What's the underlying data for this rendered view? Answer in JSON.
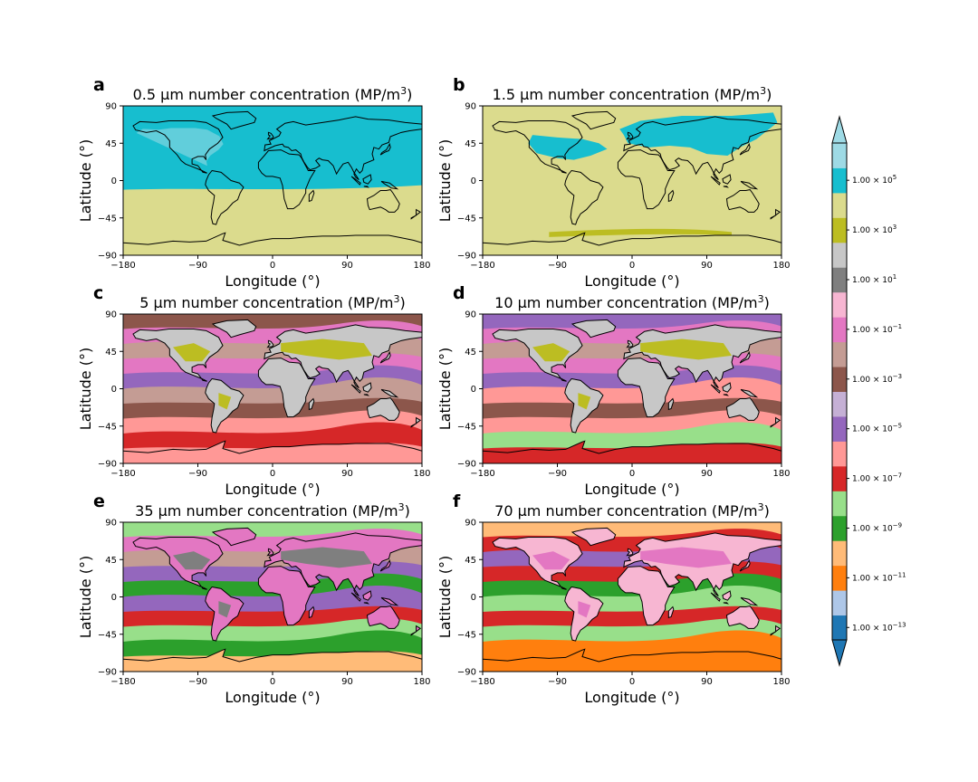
{
  "chart_data": {
    "type": "heatmap",
    "figure": "multi-panel global maps",
    "colorbar": {
      "colors": [
        "#1f77b4",
        "#aec7e8",
        "#ff7f0e",
        "#ffbb78",
        "#2ca02c",
        "#98df8a",
        "#d62728",
        "#ff9896",
        "#9467bd",
        "#c5b0d5",
        "#8c564b",
        "#c49c94",
        "#e377c2",
        "#f7b6d2",
        "#7f7f7f",
        "#c7c7c7",
        "#bcbd22",
        "#dbdb8d",
        "#17becf",
        "#9edae5"
      ],
      "extend": "both",
      "tick_labels": [
        {
          "mantissa": "1.00 × 10",
          "exp": "−13",
          "level_index": 0
        },
        {
          "mantissa": "1.00 × 10",
          "exp": "−11",
          "level_index": 2
        },
        {
          "mantissa": "1.00 × 10",
          "exp": "−9",
          "level_index": 4
        },
        {
          "mantissa": "1.00 × 10",
          "exp": "−7",
          "level_index": 6
        },
        {
          "mantissa": "1.00 × 10",
          "exp": "−5",
          "level_index": 8
        },
        {
          "mantissa": "1.00 × 10",
          "exp": "−3",
          "level_index": 10
        },
        {
          "mantissa": "1.00 × 10",
          "exp": "−1",
          "level_index": 12
        },
        {
          "mantissa": "1.00 × 10",
          "exp": "1",
          "level_index": 14
        },
        {
          "mantissa": "1.00 × 10",
          "exp": "3",
          "level_index": 16
        },
        {
          "mantissa": "1.00 × 10",
          "exp": "5",
          "level_index": 18
        }
      ]
    },
    "panels": [
      {
        "letter": "a",
        "title_main": "0.5 μm number concentration (MP/m",
        "title_exp": "3",
        "title_tail": ")",
        "xlabel": "Longitude (°)",
        "ylabel": "Latitude (°)",
        "xlim": [
          -180,
          180
        ],
        "ylim": [
          -90,
          90
        ],
        "xticks": [
          "−180",
          "−90",
          "0",
          "90",
          "180"
        ],
        "yticks": [
          "−90",
          "−45",
          "0",
          "45",
          "90"
        ],
        "ocean_color": "#17becf",
        "land_color": "#17becf",
        "south_color": "#dbdb8d",
        "south_boundary_lat": -10,
        "dominant_values": [
          "1.00 × 10^5",
          "1.00 × 10^3"
        ]
      },
      {
        "letter": "b",
        "title_main": "1.5 μm number concentration (MP/m",
        "title_exp": "3",
        "title_tail": ")",
        "xlabel": "Longitude (°)",
        "ylabel": "Latitude (°)",
        "xlim": [
          -180,
          180
        ],
        "ylim": [
          -90,
          90
        ],
        "xticks": [
          "−180",
          "−90",
          "0",
          "90",
          "180"
        ],
        "yticks": [
          "−90",
          "−45",
          "0",
          "45",
          "90"
        ],
        "ocean_color": "#dbdb8d",
        "land_color": "#dbdb8d",
        "north_color": "#17becf",
        "polar_band_color": "#bcbd22",
        "dominant_values": [
          "1.00 × 10^3",
          "1.00 × 10^5"
        ]
      },
      {
        "letter": "c",
        "title_main": "5 μm number concentration (MP/m",
        "title_exp": "3",
        "title_tail": ")",
        "xlabel": "Longitude (°)",
        "ylabel": "Latitude (°)",
        "xlim": [
          -180,
          180
        ],
        "ylim": [
          -90,
          90
        ],
        "xticks": [
          "−180",
          "−90",
          "0",
          "90",
          "180"
        ],
        "yticks": [
          "−90",
          "−45",
          "0",
          "45",
          "90"
        ],
        "ocean_color": "#c49c94",
        "land_color": "#c7c7c7",
        "land_core_color": "#bcbd22",
        "bands": [
          "#8c564b",
          "#e377c2",
          "#c49c94",
          "#e377c2",
          "#9467bd",
          "#c49c94",
          "#8c564b",
          "#ff9896",
          "#d62728",
          "#ff9896"
        ]
      },
      {
        "letter": "d",
        "title_main": "10 μm number concentration (MP/m",
        "title_exp": "3",
        "title_tail": ")",
        "xlabel": "Longitude (°)",
        "ylabel": "Latitude (°)",
        "xlim": [
          -180,
          180
        ],
        "ylim": [
          -90,
          90
        ],
        "xticks": [
          "−180",
          "−90",
          "0",
          "90",
          "180"
        ],
        "yticks": [
          "−90",
          "−45",
          "0",
          "45",
          "90"
        ],
        "ocean_color": "#c49c94",
        "land_color": "#c7c7c7",
        "land_core_color": "#bcbd22",
        "bands": [
          "#9467bd",
          "#e377c2",
          "#c49c94",
          "#e377c2",
          "#9467bd",
          "#ff9896",
          "#8c564b",
          "#ff9896",
          "#98df8a",
          "#d62728"
        ]
      },
      {
        "letter": "e",
        "title_main": "35 μm number concentration (MP/m",
        "title_exp": "3",
        "title_tail": ")",
        "xlabel": "Longitude (°)",
        "ylabel": "Latitude (°)",
        "xlim": [
          -180,
          180
        ],
        "ylim": [
          -90,
          90
        ],
        "xticks": [
          "−180",
          "−90",
          "0",
          "90",
          "180"
        ],
        "yticks": [
          "−90",
          "−45",
          "0",
          "45",
          "90"
        ],
        "ocean_color": "#ff9896",
        "land_color": "#e377c2",
        "land_core_color": "#7f7f7f",
        "bands": [
          "#98df8a",
          "#e377c2",
          "#c49c94",
          "#9467bd",
          "#2ca02c",
          "#9467bd",
          "#d62728",
          "#98df8a",
          "#2ca02c",
          "#ffbb78"
        ]
      },
      {
        "letter": "f",
        "title_main": "70 μm number concentration (MP/m",
        "title_exp": "3",
        "title_tail": ")",
        "xlabel": "Longitude (°)",
        "ylabel": "Latitude (°)",
        "xlim": [
          -180,
          180
        ],
        "ylim": [
          -90,
          90
        ],
        "xticks": [
          "−180",
          "−90",
          "0",
          "90",
          "180"
        ],
        "yticks": [
          "−90",
          "−45",
          "0",
          "45",
          "90"
        ],
        "ocean_color": "#2ca02c",
        "land_color": "#f7b6d2",
        "land_core_color": "#e377c2",
        "bands": [
          "#ffbb78",
          "#d62728",
          "#9467bd",
          "#d62728",
          "#2ca02c",
          "#98df8a",
          "#d62728",
          "#98df8a",
          "#ff7f0e",
          "#ff7f0e"
        ]
      }
    ]
  }
}
